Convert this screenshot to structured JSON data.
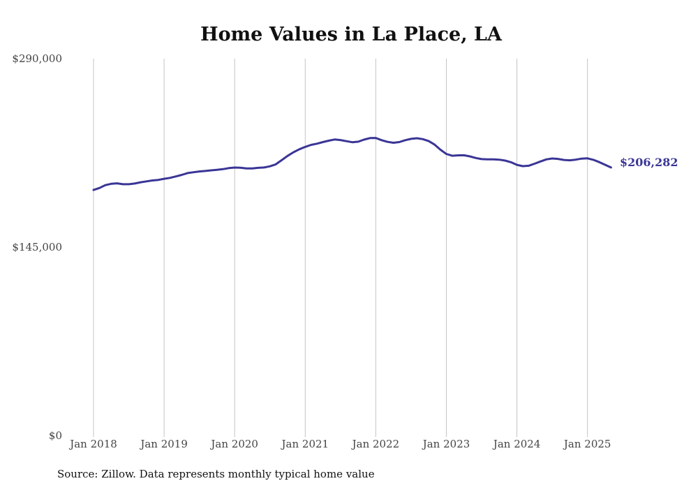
{
  "chart_data": {
    "type": "line",
    "title": "Home Values in La Place, LA",
    "source_note": "Source: Zillow. Data represents monthly typical home value",
    "ylim": [
      0,
      290000
    ],
    "yticks": [
      {
        "value": 290000,
        "label": "$290,000"
      },
      {
        "value": 145000,
        "label": "$145,000"
      },
      {
        "value": 0,
        "label": "$0"
      }
    ],
    "xticks": [
      {
        "value": 2018.0,
        "label": "Jan 2018"
      },
      {
        "value": 2019.0,
        "label": "Jan 2019"
      },
      {
        "value": 2020.0,
        "label": "Jan 2020"
      },
      {
        "value": 2021.0,
        "label": "Jan 2021"
      },
      {
        "value": 2022.0,
        "label": "Jan 2022"
      },
      {
        "value": 2023.0,
        "label": "Jan 2023"
      },
      {
        "value": 2024.0,
        "label": "Jan 2024"
      },
      {
        "value": 2025.0,
        "label": "Jan 2025"
      }
    ],
    "xlim": [
      2018.0,
      2025.35
    ],
    "grid": "vertical",
    "legend": "none",
    "end_label": "$206,282",
    "line_color": "#3a3596",
    "series": [
      {
        "points": [
          [
            2018.0,
            189000
          ],
          [
            2018.083,
            190500
          ],
          [
            2018.167,
            192700
          ],
          [
            2018.25,
            193700
          ],
          [
            2018.333,
            194100
          ],
          [
            2018.417,
            193400
          ],
          [
            2018.5,
            193400
          ],
          [
            2018.583,
            193900
          ],
          [
            2018.667,
            194900
          ],
          [
            2018.75,
            195600
          ],
          [
            2018.833,
            196300
          ],
          [
            2018.917,
            196700
          ],
          [
            2019.0,
            197600
          ],
          [
            2019.083,
            198300
          ],
          [
            2019.167,
            199400
          ],
          [
            2019.25,
            200600
          ],
          [
            2019.333,
            202000
          ],
          [
            2019.417,
            202600
          ],
          [
            2019.5,
            203200
          ],
          [
            2019.583,
            203600
          ],
          [
            2019.667,
            204100
          ],
          [
            2019.75,
            204500
          ],
          [
            2019.833,
            205000
          ],
          [
            2019.917,
            205800
          ],
          [
            2020.0,
            206200
          ],
          [
            2020.083,
            206100
          ],
          [
            2020.167,
            205500
          ],
          [
            2020.25,
            205600
          ],
          [
            2020.333,
            206000
          ],
          [
            2020.417,
            206300
          ],
          [
            2020.5,
            207200
          ],
          [
            2020.583,
            208700
          ],
          [
            2020.667,
            211900
          ],
          [
            2020.75,
            215200
          ],
          [
            2020.833,
            218000
          ],
          [
            2020.917,
            220300
          ],
          [
            2021.0,
            222100
          ],
          [
            2021.083,
            223700
          ],
          [
            2021.167,
            224600
          ],
          [
            2021.25,
            225800
          ],
          [
            2021.333,
            226900
          ],
          [
            2021.417,
            227800
          ],
          [
            2021.5,
            227400
          ],
          [
            2021.583,
            226500
          ],
          [
            2021.667,
            225700
          ],
          [
            2021.75,
            226100
          ],
          [
            2021.833,
            227700
          ],
          [
            2021.917,
            228900
          ],
          [
            2022.0,
            229000
          ],
          [
            2022.083,
            227300
          ],
          [
            2022.167,
            226000
          ],
          [
            2022.25,
            225300
          ],
          [
            2022.333,
            225800
          ],
          [
            2022.417,
            227300
          ],
          [
            2022.5,
            228300
          ],
          [
            2022.583,
            228800
          ],
          [
            2022.667,
            228100
          ],
          [
            2022.75,
            226600
          ],
          [
            2022.833,
            223900
          ],
          [
            2022.917,
            219900
          ],
          [
            2023.0,
            216700
          ],
          [
            2023.083,
            215300
          ],
          [
            2023.167,
            215600
          ],
          [
            2023.25,
            215700
          ],
          [
            2023.333,
            214800
          ],
          [
            2023.417,
            213600
          ],
          [
            2023.5,
            212700
          ],
          [
            2023.583,
            212500
          ],
          [
            2023.667,
            212500
          ],
          [
            2023.75,
            212300
          ],
          [
            2023.833,
            211600
          ],
          [
            2023.917,
            210300
          ],
          [
            2024.0,
            208300
          ],
          [
            2024.083,
            207300
          ],
          [
            2024.167,
            207600
          ],
          [
            2024.25,
            209200
          ],
          [
            2024.333,
            210900
          ],
          [
            2024.417,
            212500
          ],
          [
            2024.5,
            213200
          ],
          [
            2024.583,
            212900
          ],
          [
            2024.667,
            212100
          ],
          [
            2024.75,
            211800
          ],
          [
            2024.833,
            212300
          ],
          [
            2024.917,
            213100
          ],
          [
            2025.0,
            213300
          ],
          [
            2025.083,
            212200
          ],
          [
            2025.167,
            210400
          ],
          [
            2025.333,
            206282
          ]
        ]
      }
    ]
  }
}
